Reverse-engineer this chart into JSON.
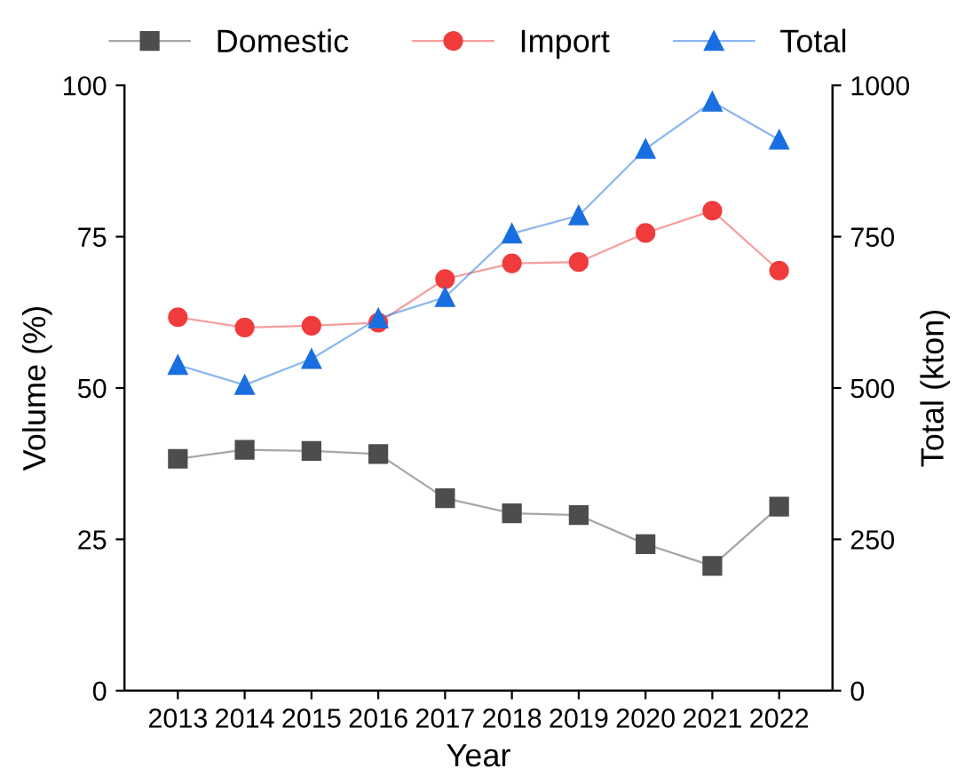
{
  "chart_data": {
    "type": "line",
    "xlabel": "Year",
    "ylabel": "Volume (%)",
    "y2label": "Total (kton)",
    "categories": [
      "2013",
      "2014",
      "2015",
      "2016",
      "2017",
      "2018",
      "2019",
      "2020",
      "2021",
      "2022"
    ],
    "series": [
      {
        "name": "Domestic",
        "color": "#4d4d4d",
        "marker": "square",
        "values": [
          38.3,
          39.8,
          39.6,
          39.1,
          31.8,
          29.3,
          29.0,
          24.2,
          20.6,
          30.4
        ]
      },
      {
        "name": "Import",
        "color": "#f03c3c",
        "marker": "circle",
        "values": [
          61.7,
          60.0,
          60.3,
          60.8,
          68.0,
          70.6,
          70.8,
          75.6,
          79.3,
          69.4
        ]
      },
      {
        "name": "Total",
        "color": "#1a6fe0",
        "marker": "triangle",
        "axis": "y2",
        "values": [
          538,
          505,
          548,
          615,
          650,
          755,
          785,
          895,
          973,
          910
        ]
      }
    ],
    "ylim": [
      0,
      100
    ],
    "yticks": [
      0,
      25,
      50,
      75,
      100
    ],
    "y2lim": [
      0,
      1000
    ],
    "y2ticks": [
      0,
      250,
      500,
      750,
      1000
    ],
    "grid": false,
    "legend": "top",
    "line_style": "solid"
  }
}
